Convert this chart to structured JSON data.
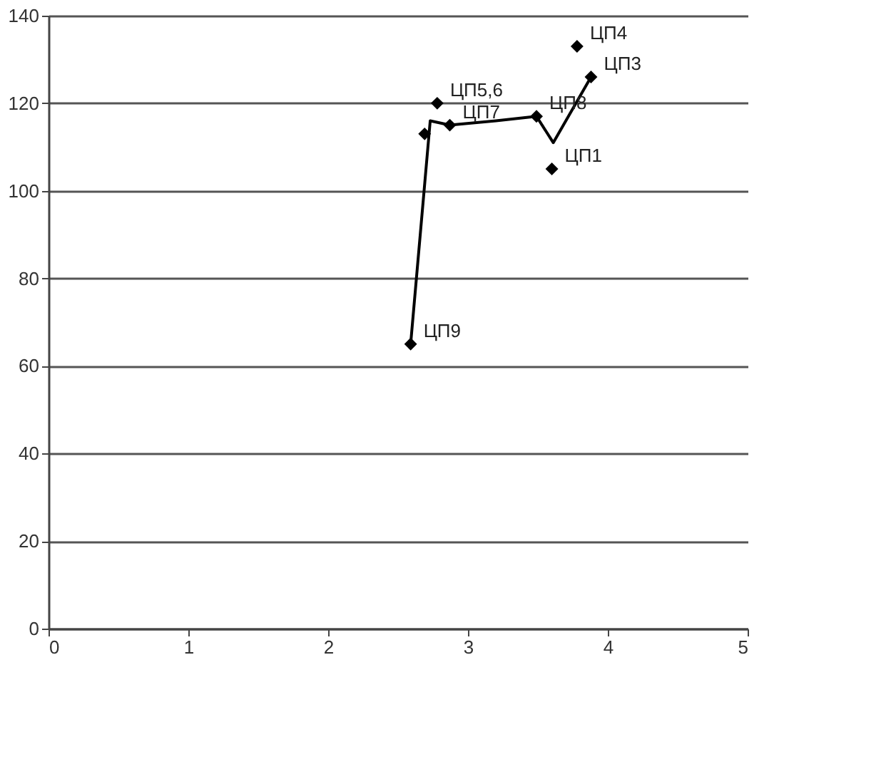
{
  "chart_data": {
    "type": "scatter",
    "xlim": [
      0,
      5
    ],
    "xticks": [
      0,
      1,
      2,
      3,
      4,
      5
    ],
    "ylim": [
      0,
      140
    ],
    "yticks": [
      0,
      20,
      40,
      60,
      80,
      100,
      120,
      140
    ],
    "grid": "y",
    "series": [
      {
        "type": "line",
        "color": "#000000",
        "marker": "none",
        "x": [
          2.59,
          2.73,
          2.87,
          3.2,
          3.49,
          3.61,
          3.88
        ],
        "values": [
          65,
          116,
          115,
          116,
          117,
          111,
          126
        ]
      },
      {
        "type": "scatter",
        "color": "#000000",
        "marker": "diamond",
        "x": [
          2.59,
          2.69,
          2.78,
          2.87,
          3.49,
          3.6,
          3.78,
          3.88
        ],
        "values": [
          65,
          113,
          120,
          115,
          117,
          105,
          133,
          126
        ],
        "value_labels": [
          "ЦП9",
          null,
          "ЦП5,6",
          "ЦП7",
          "ЦП8",
          "ЦП1",
          "ЦП4",
          "ЦП3"
        ]
      }
    ]
  }
}
